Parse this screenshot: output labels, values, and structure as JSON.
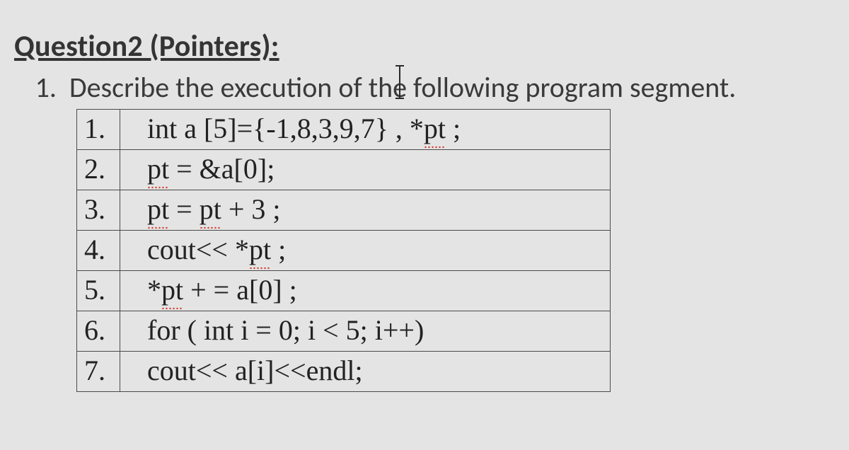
{
  "heading": "Question2 (Pointers):",
  "task": {
    "number": "1.",
    "text_before": "Describe the execution of th",
    "caret_char": "e",
    "text_after": " following program segment."
  },
  "code": {
    "rows": [
      {
        "n": "1.",
        "pre": "int a [5]={-1,8,3,9,7} , *",
        "sq": "pt",
        "post": " ;"
      },
      {
        "n": "2.",
        "pre": "",
        "sq": "pt",
        "post": " = &a[0];"
      },
      {
        "n": "3.",
        "pre": "",
        "sq": "pt",
        "mid": " = ",
        "sq2": "pt",
        "post": " + 3 ;"
      },
      {
        "n": "4.",
        "pre": "cout<< *",
        "sq": "pt",
        "post": " ;"
      },
      {
        "n": "5.",
        "pre": "*",
        "sq": "pt",
        "post": " + = a[0] ;"
      },
      {
        "n": "6.",
        "pre": "for ( int i = 0; i < 5; i++)",
        "sq": "",
        "post": ""
      },
      {
        "n": "7.",
        "pre": "cout<< a[i]<<endl;",
        "sq": "",
        "post": ""
      }
    ]
  },
  "style": {
    "page_bg": "#e4e4e4",
    "heading_fontsize": 42,
    "body_fontsize": 40,
    "code_fontsize": 40,
    "text_color": "#3a3a3a",
    "border_color": "#4a4a4a",
    "squiggle_color": "#d43a2a",
    "table_cell_code_width": 640,
    "table_cell_ln_width": 38,
    "heading_font": "Calibri, Arial, sans-serif",
    "code_font": "Times New Roman, Times, serif"
  }
}
